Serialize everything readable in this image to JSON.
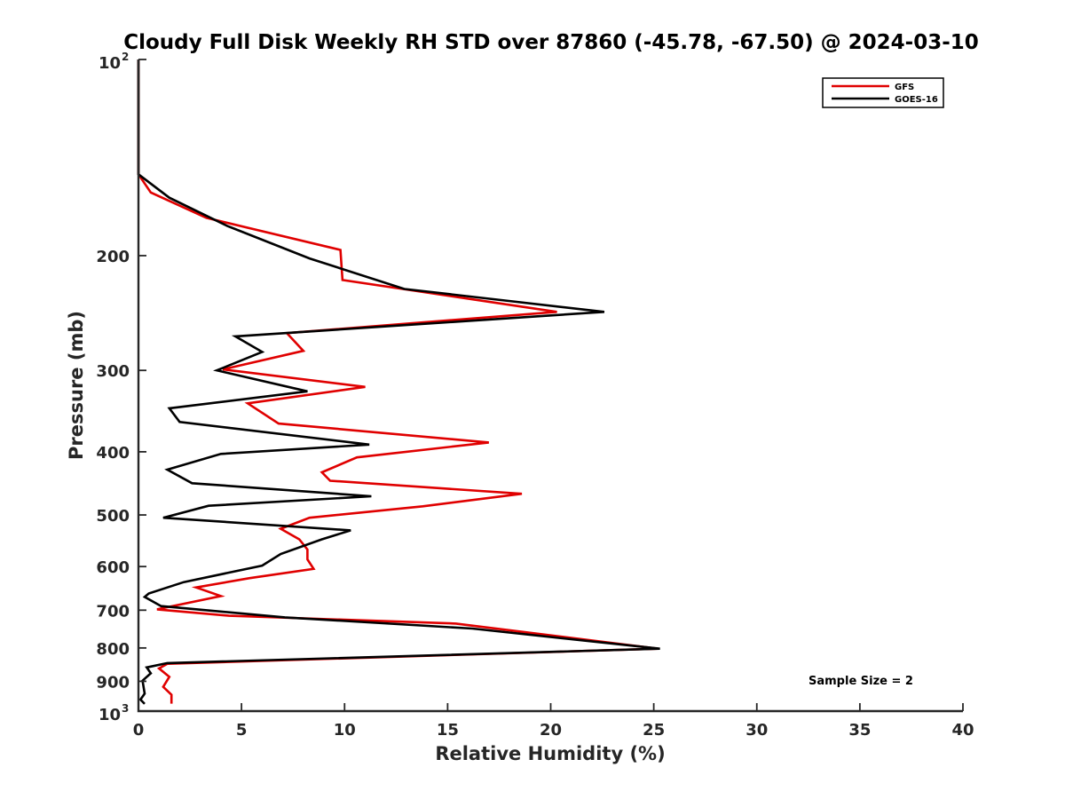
{
  "chart_data": {
    "type": "line",
    "title": "Cloudy Full Disk Weekly RH STD over 87860 (-45.78, -67.50) @ 2024-03-10",
    "xlabel": "Relative Humidity (%)",
    "ylabel": "Pressure (mb)",
    "xlim": [
      0,
      40
    ],
    "ylim": [
      100,
      1000
    ],
    "y_scale": "log",
    "y_reversed": true,
    "x_ticks": [
      0,
      5,
      10,
      15,
      20,
      25,
      30,
      35,
      40
    ],
    "x_tick_labels": [
      "0",
      "5",
      "10",
      "15",
      "20",
      "25",
      "30",
      "35",
      "40"
    ],
    "y_ticks": [
      200,
      300,
      400,
      500,
      600,
      700,
      800,
      900
    ],
    "y_tick_labels": [
      "200",
      "300",
      "400",
      "500",
      "600",
      "700",
      "800",
      "900"
    ],
    "y_extreme_labels": [
      {
        "value": 100,
        "base": "10",
        "exp": "2"
      },
      {
        "value": 1000,
        "base": "10",
        "exp": "3"
      }
    ],
    "grid": false,
    "legend_position": "top-right",
    "annotation": "Sample Size = 2",
    "series": [
      {
        "name": "GFS",
        "color": "#e00000",
        "points": [
          [
            0,
            100
          ],
          [
            0,
            150
          ],
          [
            0.6,
            160
          ],
          [
            3.3,
            175
          ],
          [
            9.8,
            196
          ],
          [
            9.9,
            218
          ],
          [
            20.3,
            244
          ],
          [
            7.2,
            263
          ],
          [
            8,
            280
          ],
          [
            4.1,
            299
          ],
          [
            11,
            318
          ],
          [
            5.3,
            337
          ],
          [
            6.8,
            362
          ],
          [
            17,
            387
          ],
          [
            10.6,
            408
          ],
          [
            8.9,
            430
          ],
          [
            9.3,
            443
          ],
          [
            18.6,
            464
          ],
          [
            13.8,
            485
          ],
          [
            8.3,
            505
          ],
          [
            6.9,
            525
          ],
          [
            7.8,
            545
          ],
          [
            8.2,
            565
          ],
          [
            8.2,
            585
          ],
          [
            8.5,
            605
          ],
          [
            5.4,
            625
          ],
          [
            2.8,
            646
          ],
          [
            4,
            666
          ],
          [
            0.9,
            698
          ],
          [
            4.4,
            714
          ],
          [
            15.4,
            734
          ],
          [
            25.2,
            802
          ],
          [
            1.4,
            846
          ],
          [
            1.0,
            860
          ],
          [
            1.5,
            886
          ],
          [
            1.2,
            918
          ],
          [
            1.6,
            944
          ],
          [
            1.6,
            974
          ]
        ]
      },
      {
        "name": "GOES-16",
        "color": "#000000",
        "points": [
          [
            0,
            100
          ],
          [
            0,
            150
          ],
          [
            1.5,
            163
          ],
          [
            4.3,
            180
          ],
          [
            8.3,
            202
          ],
          [
            12.9,
            225
          ],
          [
            22.6,
            244
          ],
          [
            4.7,
            266
          ],
          [
            6,
            281
          ],
          [
            3.8,
            300
          ],
          [
            8.2,
            323
          ],
          [
            1.5,
            343
          ],
          [
            2,
            360
          ],
          [
            11.2,
            390
          ],
          [
            4,
            403
          ],
          [
            1.4,
            426
          ],
          [
            2.6,
            447
          ],
          [
            11.3,
            468
          ],
          [
            3.4,
            484
          ],
          [
            1.2,
            505
          ],
          [
            10.3,
            528
          ],
          [
            8.9,
            545
          ],
          [
            6.9,
            574
          ],
          [
            6,
            598
          ],
          [
            2.2,
            634
          ],
          [
            0.5,
            660
          ],
          [
            0.3,
            668
          ],
          [
            1.1,
            690
          ],
          [
            7.1,
            718
          ],
          [
            16.2,
            747
          ],
          [
            25.3,
            802
          ],
          [
            1.4,
            844
          ],
          [
            0.4,
            857
          ],
          [
            0.6,
            875
          ],
          [
            0.2,
            898
          ],
          [
            0.3,
            940
          ],
          [
            0.1,
            960
          ],
          [
            0.3,
            975
          ]
        ]
      }
    ]
  }
}
